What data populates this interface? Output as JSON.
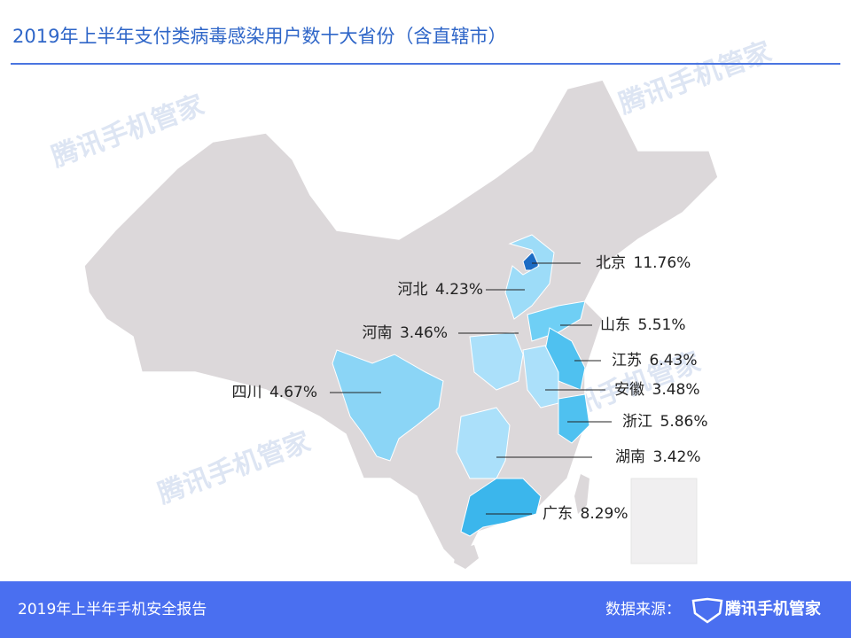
{
  "chart_data": {
    "type": "map",
    "title": "2019年上半年支付类病毒感染用户数十大省份（含直辖市）",
    "categories": [
      "北京",
      "河北",
      "山东",
      "河南",
      "江苏",
      "四川",
      "安徽",
      "浙江",
      "湖南",
      "广东"
    ],
    "values": [
      11.76,
      4.23,
      5.51,
      3.46,
      6.43,
      4.67,
      3.48,
      5.86,
      3.42,
      8.29
    ],
    "value_labels": [
      "11.76%",
      "4.23%",
      "5.51%",
      "3.46%",
      "6.43%",
      "4.67%",
      "3.48%",
      "5.86%",
      "3.42%",
      "8.29%"
    ],
    "colors": [
      "#1c6cc4",
      "#9ddcf8",
      "#6fcff5",
      "#abe0fa",
      "#4fc1f0",
      "#8bd5f6",
      "#abe0fa",
      "#4fc1f0",
      "#abe0fa",
      "#3bb6ec"
    ]
  },
  "watermark": "腾讯手机管家",
  "footer": {
    "report": "2019年上半年手机安全报告",
    "source_label": "数据来源：",
    "brand": "腾讯手机管家"
  }
}
